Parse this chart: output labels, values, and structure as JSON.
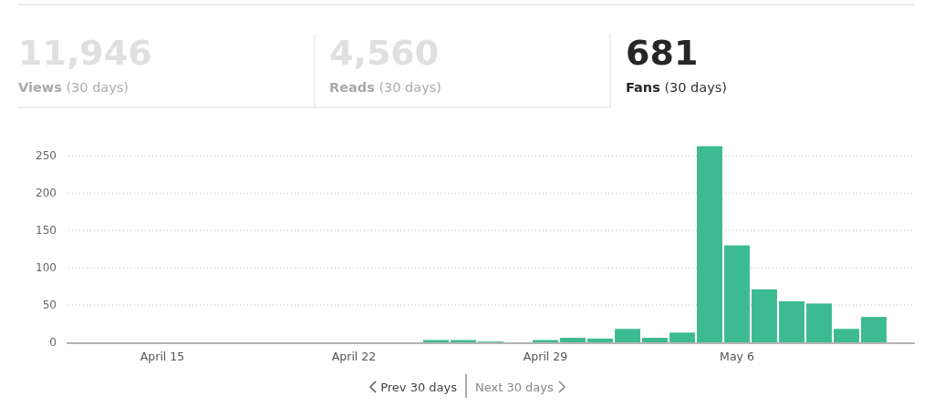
{
  "chart_data": {
    "type": "bar",
    "categories": [
      null,
      null,
      null,
      "April 15",
      null,
      null,
      null,
      null,
      null,
      null,
      "April 22",
      null,
      null,
      null,
      null,
      null,
      null,
      "April 29",
      null,
      null,
      null,
      null,
      null,
      null,
      "May 6",
      null,
      null,
      null,
      null,
      null
    ],
    "values": [
      0,
      0,
      0,
      0,
      0,
      0,
      0,
      0,
      0,
      0,
      0,
      0,
      0,
      3,
      3,
      1,
      0,
      3,
      6,
      5,
      18,
      6,
      13,
      263,
      130,
      71,
      55,
      52,
      18,
      34
    ],
    "color": "#3cba92",
    "ylim": [
      0,
      265
    ],
    "yticks": [
      0,
      50,
      100,
      150,
      200,
      250
    ],
    "grid": "y",
    "annotations": [
      "11,946",
      "Views (30 days)",
      "4,560",
      "Reads (30 days)",
      "681",
      "Fans (30 days)",
      "Prev 30 days",
      "Next 30 days"
    ]
  }
}
